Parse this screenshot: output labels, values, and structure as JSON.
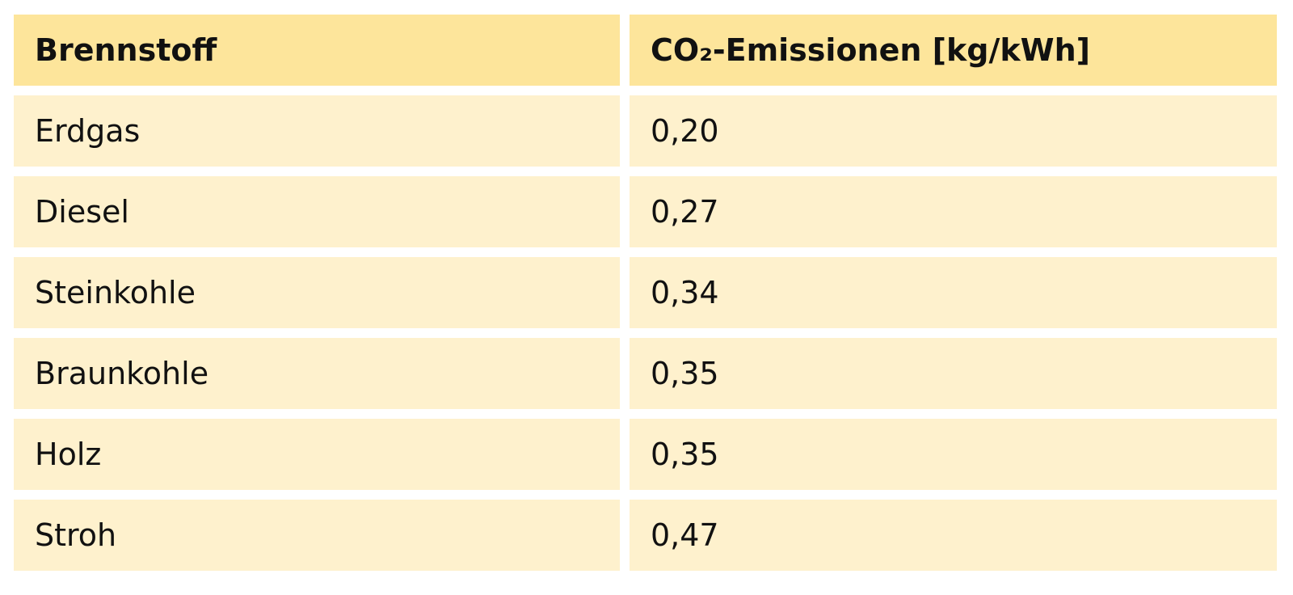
{
  "table": {
    "header": [
      "Brennstoff",
      "CO₂-Emissionen [kg/kWh]"
    ],
    "rows": [
      [
        "Erdgas",
        "0,20"
      ],
      [
        "Diesel",
        "0,27"
      ],
      [
        "Steinkohle",
        "0,34"
      ],
      [
        "Braunkohle",
        "0,35"
      ],
      [
        "Holz",
        "0,35"
      ],
      [
        "Stroh",
        "0,47"
      ]
    ]
  }
}
